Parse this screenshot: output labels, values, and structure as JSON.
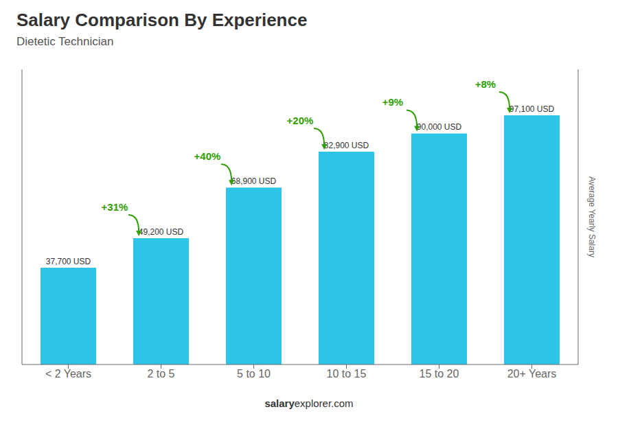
{
  "chart_data": {
    "type": "bar",
    "title": "Salary Comparison By Experience",
    "subtitle": "Dietetic Technician",
    "ylabel": "Average Yearly Salary",
    "categories": [
      "< 2 Years",
      "2 to 5",
      "5 to 10",
      "10 to 15",
      "15 to 20",
      "20+ Years"
    ],
    "values": [
      37700,
      49200,
      68900,
      82900,
      90000,
      97100
    ],
    "value_labels": [
      "37,700 USD",
      "49,200 USD",
      "68,900 USD",
      "82,900 USD",
      "90,000 USD",
      "97,100 USD"
    ],
    "data_labels": true,
    "color": "#2ec4e8",
    "ylim": [
      0,
      115000
    ],
    "tick_labels": "x",
    "annotations": [
      {
        "text": "+31%",
        "color": "#2e9e00"
      },
      {
        "text": "+40%",
        "color": "#2e9e00"
      },
      {
        "text": "+20%",
        "color": "#2e9e00"
      },
      {
        "text": "+9%",
        "color": "#2e9e00"
      },
      {
        "text": "+8%",
        "color": "#2e9e00"
      }
    ],
    "footer": [
      "salary",
      "explorer.com"
    ]
  }
}
